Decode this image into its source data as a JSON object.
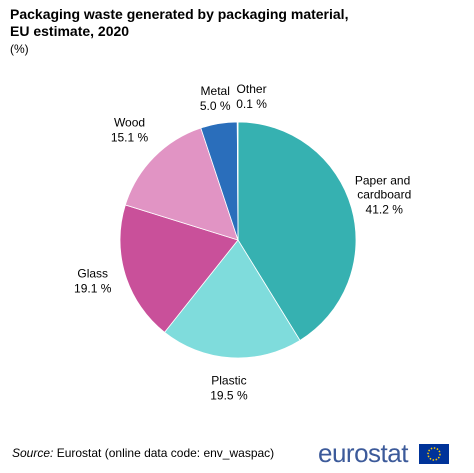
{
  "chart_data": {
    "type": "pie",
    "title": "Packaging waste generated by packaging material, EU estimate, 2020",
    "subtitle": "(%)",
    "categories": [
      "Paper and cardboard",
      "Plastic",
      "Glass",
      "Wood",
      "Metal",
      "Other"
    ],
    "values": [
      41.2,
      19.5,
      19.1,
      15.1,
      5.0,
      0.1
    ],
    "value_labels": [
      "41.2 %",
      "19.5 %",
      "19.1 %",
      "15.1 %",
      "5.0 %",
      "0.1 %"
    ],
    "colors": [
      "#36b1b1",
      "#7fdcdc",
      "#c9509a",
      "#e194c4",
      "#2a6ebb",
      "#1f8a8a"
    ],
    "source_label": "Source:",
    "source": "Eurostat (online data code: env_waspac)",
    "logo": "eurostat"
  }
}
